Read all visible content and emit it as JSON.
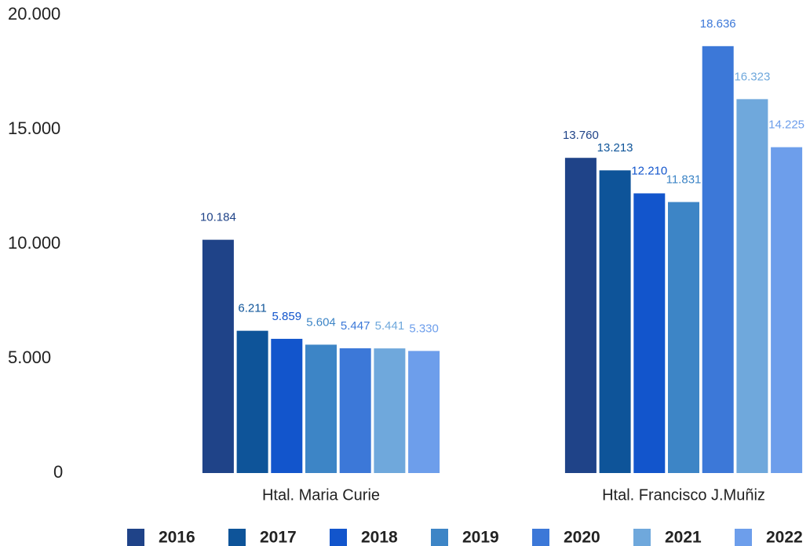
{
  "chart_data": {
    "type": "bar",
    "categories": [
      "Htal. Maria Curie",
      "Htal. Francisco J.Muñiz"
    ],
    "series": [
      {
        "name": "2016",
        "color": "#1f4388",
        "values": [
          10184,
          13760
        ],
        "value_labels": [
          "10.184",
          "13.760"
        ]
      },
      {
        "name": "2017",
        "color": "#0e5499",
        "values": [
          6211,
          13213
        ],
        "value_labels": [
          "6.211",
          "13.213"
        ]
      },
      {
        "name": "2018",
        "color": "#1255cc",
        "values": [
          5859,
          12210
        ],
        "value_labels": [
          "5.859",
          "12.210"
        ]
      },
      {
        "name": "2019",
        "color": "#3d85c6",
        "values": [
          5604,
          11831
        ],
        "value_labels": [
          "5.604",
          "11.831"
        ]
      },
      {
        "name": "2020",
        "color": "#3c78d8",
        "values": [
          5447,
          18636
        ],
        "value_labels": [
          "5.447",
          "18.636"
        ]
      },
      {
        "name": "2021",
        "color": "#6fa8dc",
        "values": [
          5441,
          16323
        ],
        "value_labels": [
          "5.441",
          "16.323"
        ]
      },
      {
        "name": "2022",
        "color": "#6d9eeb",
        "values": [
          5330,
          14225
        ],
        "value_labels": [
          "5.330",
          "14.225"
        ]
      }
    ],
    "ylim": [
      0,
      20000
    ],
    "yticks": [
      0,
      {
        "value": 5000,
        "label": "5.000"
      },
      {
        "value": 10000,
        "label": "10.000"
      },
      {
        "value": 15000,
        "label": "15.000"
      },
      {
        "value": 20000,
        "label": "20.000"
      }
    ],
    "legend": "bottom"
  }
}
